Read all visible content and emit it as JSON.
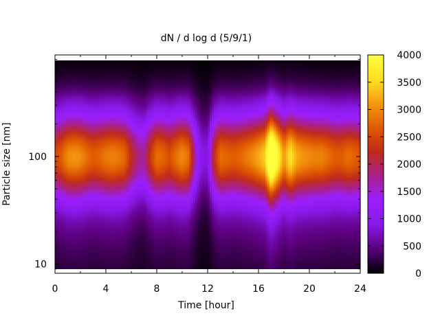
{
  "chart_data": {
    "type": "heatmap",
    "title": "dN / d log d (5/9/1)",
    "xlabel": "Time [hour]",
    "ylabel": "Particle size [nm]",
    "xlim": [
      0,
      24
    ],
    "ylim": [
      8.2,
      880
    ],
    "y_scale": "log",
    "x_ticks": [
      "0",
      "4",
      "8",
      "12",
      "16",
      "20",
      "24"
    ],
    "x_tick_values": [
      0,
      4,
      8,
      12,
      16,
      20,
      24
    ],
    "y_ticks": [
      "10",
      "100"
    ],
    "y_tick_values": [
      10,
      100
    ],
    "colorbar": {
      "ticks": [
        "0",
        "500",
        "1000",
        "1500",
        "2000",
        "2500",
        "3000",
        "3500",
        "4000"
      ],
      "tick_values": [
        0,
        500,
        1000,
        1500,
        2000,
        2500,
        3000,
        3500,
        4000
      ],
      "range": [
        0,
        4000
      ],
      "palette": [
        "#000000",
        "#5a007a",
        "#8a18e8",
        "#9b1fff",
        "#a8208a",
        "#c02a1a",
        "#e05a00",
        "#f59a10",
        "#ffe020",
        "#ffff40"
      ]
    },
    "mode_diameter_nm": 100,
    "mode_log_width": 0.26,
    "baseline_level": 0.24,
    "time_hours": [
      0,
      0.5,
      1,
      1.5,
      2,
      2.5,
      3,
      3.5,
      4,
      4.5,
      5,
      5.5,
      6,
      6.5,
      7,
      7.5,
      8,
      8.5,
      9,
      9.5,
      10,
      10.5,
      11,
      11.5,
      12,
      12.5,
      13,
      13.5,
      14,
      14.5,
      15,
      15.5,
      16,
      16.5,
      17,
      17.5,
      18,
      18.5,
      19,
      19.5,
      20,
      20.5,
      21,
      21.5,
      22,
      22.5,
      23,
      23.5,
      24
    ],
    "peak_concentration": [
      1900,
      2050,
      2300,
      2350,
      2300,
      2150,
      2050,
      2100,
      2200,
      2250,
      2200,
      2100,
      1700,
      1400,
      1300,
      1800,
      2150,
      2100,
      1950,
      2150,
      2300,
      2150,
      1300,
      700,
      650,
      1700,
      2150,
      2100,
      2050,
      2100,
      2200,
      2300,
      2450,
      2650,
      3800,
      3000,
      2350,
      2800,
      2450,
      2350,
      2300,
      2250,
      2250,
      2150,
      2050,
      2050,
      2150,
      2100,
      2000
    ]
  }
}
